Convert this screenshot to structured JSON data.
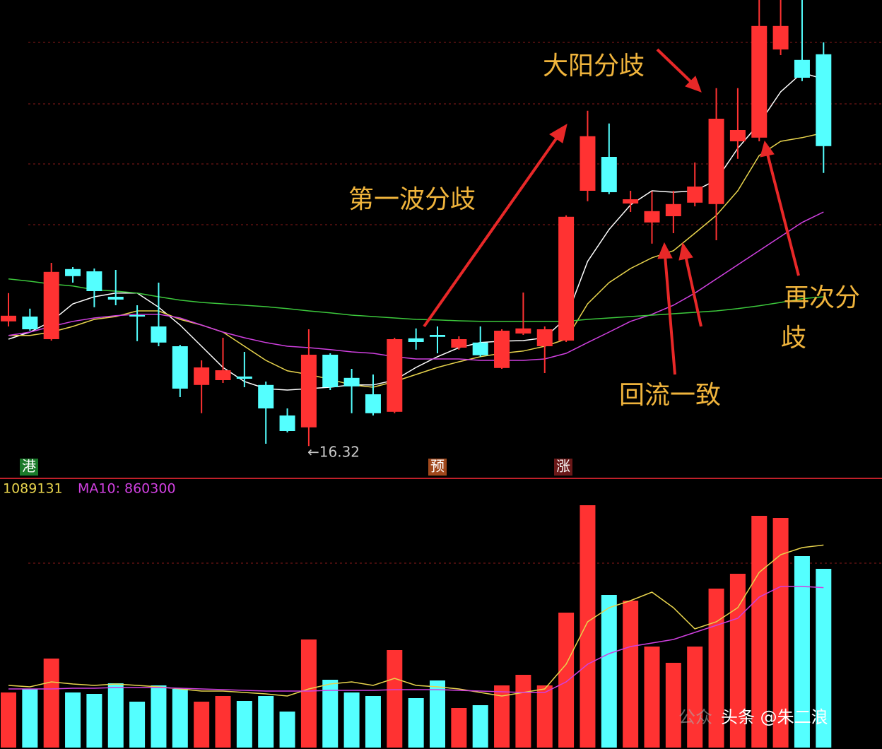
{
  "chart_data": [
    {
      "type": "candlestick",
      "ylim": [
        16.1,
        32.1
      ],
      "up_color": "#ff3232",
      "down_color": "#54ffff",
      "open": [
        20.73,
        20.9,
        20.1,
        22.58,
        22.5,
        21.6,
        20.95,
        20.55,
        19.85,
        18.48,
        18.65,
        18.78,
        18.48,
        17.4,
        16.98,
        19.55,
        18.73,
        18.15,
        17.53,
        20.13,
        20.25,
        19.8,
        19.98,
        19.08,
        20.3,
        19.85,
        20.05,
        25.35,
        26.55,
        24.9,
        24.23,
        24.45,
        24.93,
        24.88,
        27.1,
        27.23,
        30.35,
        29.98,
        30.18
      ],
      "high": [
        21.73,
        21.18,
        22.8,
        22.65,
        22.6,
        22.55,
        21.3,
        22.1,
        19.9,
        19.35,
        20.15,
        19.65,
        18.6,
        17.65,
        20.45,
        19.6,
        19.05,
        18.85,
        20.15,
        20.48,
        20.55,
        20.2,
        20.55,
        20.45,
        21.75,
        20.55,
        24.48,
        28.18,
        27.73,
        25.35,
        25.33,
        25.35,
        26.35,
        28.98,
        28.98,
        32.1,
        32.1,
        32.1,
        30.6
      ],
      "low": [
        20.55,
        20.4,
        20.05,
        22.1,
        21.23,
        21.3,
        20.03,
        19.85,
        18.05,
        17.48,
        18.55,
        18.4,
        16.4,
        16.8,
        16.32,
        18.3,
        17.48,
        17.4,
        17.48,
        19.73,
        19.6,
        19.73,
        19.48,
        19.05,
        20.25,
        18.9,
        20.0,
        24.98,
        25.23,
        24.6,
        23.48,
        23.85,
        24.8,
        23.6,
        26.48,
        27.1,
        30.15,
        29.23,
        25.98
      ],
      "close": [
        20.93,
        20.45,
        22.48,
        22.33,
        21.8,
        21.5,
        20.9,
        19.98,
        18.35,
        19.1,
        19.0,
        18.7,
        17.65,
        16.85,
        19.55,
        18.4,
        18.43,
        17.48,
        20.1,
        20.0,
        20.18,
        20.1,
        19.53,
        20.4,
        20.48,
        20.45,
        24.43,
        27.28,
        25.3,
        25.05,
        24.63,
        24.88,
        25.5,
        27.9,
        27.5,
        31.18,
        31.18,
        29.35,
        26.93
      ],
      "series": [
        {
          "color": "#ffffff",
          "values": [
            20.1,
            20.35,
            20.73,
            21.35,
            21.6,
            21.73,
            21.73,
            21.23,
            20.6,
            19.85,
            19.1,
            18.6,
            18.35,
            18.3,
            18.35,
            18.4,
            18.48,
            18.48,
            18.65,
            19.1,
            19.48,
            19.8,
            19.98,
            20.03,
            20.05,
            20.15,
            20.85,
            22.85,
            23.98,
            24.85,
            25.35,
            25.3,
            25.35,
            25.73,
            26.85,
            27.73,
            28.85,
            29.53,
            29.3
          ]
        },
        {
          "color": "#e8d44d",
          "values": [
            20.23,
            20.23,
            20.35,
            20.55,
            20.8,
            20.9,
            21.1,
            21.1,
            20.8,
            20.6,
            20.35,
            19.85,
            19.35,
            18.98,
            18.85,
            18.68,
            18.48,
            18.4,
            18.6,
            18.85,
            19.1,
            19.3,
            19.48,
            19.6,
            19.68,
            19.85,
            20.1,
            21.35,
            22.1,
            22.6,
            22.98,
            23.23,
            23.85,
            24.48,
            25.35,
            26.6,
            27.1,
            27.23,
            27.4
          ]
        },
        {
          "color": "#d040e0",
          "values": [
            20.23,
            20.35,
            20.55,
            20.73,
            20.85,
            20.93,
            20.98,
            20.98,
            20.85,
            20.6,
            20.35,
            20.15,
            19.98,
            19.85,
            19.8,
            19.73,
            19.65,
            19.6,
            19.48,
            19.4,
            19.4,
            19.4,
            19.35,
            19.35,
            19.35,
            19.4,
            19.6,
            19.98,
            20.35,
            20.73,
            20.98,
            21.3,
            21.73,
            22.23,
            22.73,
            23.23,
            23.73,
            24.23,
            24.6
          ]
        },
        {
          "color": "#3cc83c",
          "values": [
            22.23,
            22.15,
            22.05,
            21.98,
            21.85,
            21.8,
            21.73,
            21.6,
            21.48,
            21.4,
            21.35,
            21.3,
            21.25,
            21.18,
            21.1,
            21.03,
            20.95,
            20.9,
            20.85,
            20.8,
            20.78,
            20.75,
            20.73,
            20.73,
            20.73,
            20.73,
            20.73,
            20.8,
            20.85,
            20.9,
            20.95,
            21.0,
            21.05,
            21.1,
            21.18,
            21.28,
            21.4,
            21.53,
            21.6
          ]
        }
      ],
      "low_label": "←16.32",
      "markers": [
        "港",
        "预",
        "涨"
      ],
      "annotations": [
        "大阳分歧",
        "第一波分歧",
        "再次分",
        "歧",
        "回流一致"
      ]
    },
    {
      "type": "volume",
      "ylim": [
        0,
        1447800
      ],
      "values": [
        296400,
        315400,
        478800,
        296400,
        288800,
        345800,
        247000,
        334400,
        315400,
        247000,
        277400,
        250800,
        277400,
        193800,
        581400,
        364800,
        296400,
        277400,
        524400,
        266000,
        361000,
        212800,
        228000,
        334400,
        391400,
        334400,
        725800,
        1303400,
        820800,
        790400,
        543400,
        456000,
        543400,
        855000,
        934800,
        1246400,
        1235000,
        1029800,
        961400
      ],
      "series": [
        {
          "color": "#e8d44d",
          "values": [
            334400,
            326800,
            353400,
            342000,
            334400,
            342000,
            334400,
            326800,
            315400,
            304000,
            304000,
            296400,
            288800,
            277400,
            315400,
            342000,
            353400,
            334400,
            372400,
            334400,
            326800,
            315400,
            296400,
            277400,
            296400,
            315400,
            448400,
            676400,
            752400,
            790400,
            836000,
            752400,
            638400,
            676400,
            752400,
            942400,
            1037400,
            1075400,
            1089131
          ]
        },
        {
          "color": "#d040e0",
          "values": [
            315400,
            315400,
            315400,
            319200,
            319200,
            323000,
            323000,
            323000,
            319200,
            315400,
            311600,
            307800,
            304000,
            304000,
            304000,
            307800,
            307800,
            307800,
            311600,
            311600,
            311600,
            307800,
            304000,
            300200,
            296400,
            296400,
            353400,
            448400,
            505400,
            543400,
            562400,
            581400,
            619400,
            657400,
            695400,
            809400,
            866400,
            866400,
            860300
          ]
        }
      ],
      "ma5_label": "1089131",
      "ma10_label": "MA10: 860300"
    }
  ],
  "watermark": [
    "公众",
    "头条 @朱二浪"
  ]
}
